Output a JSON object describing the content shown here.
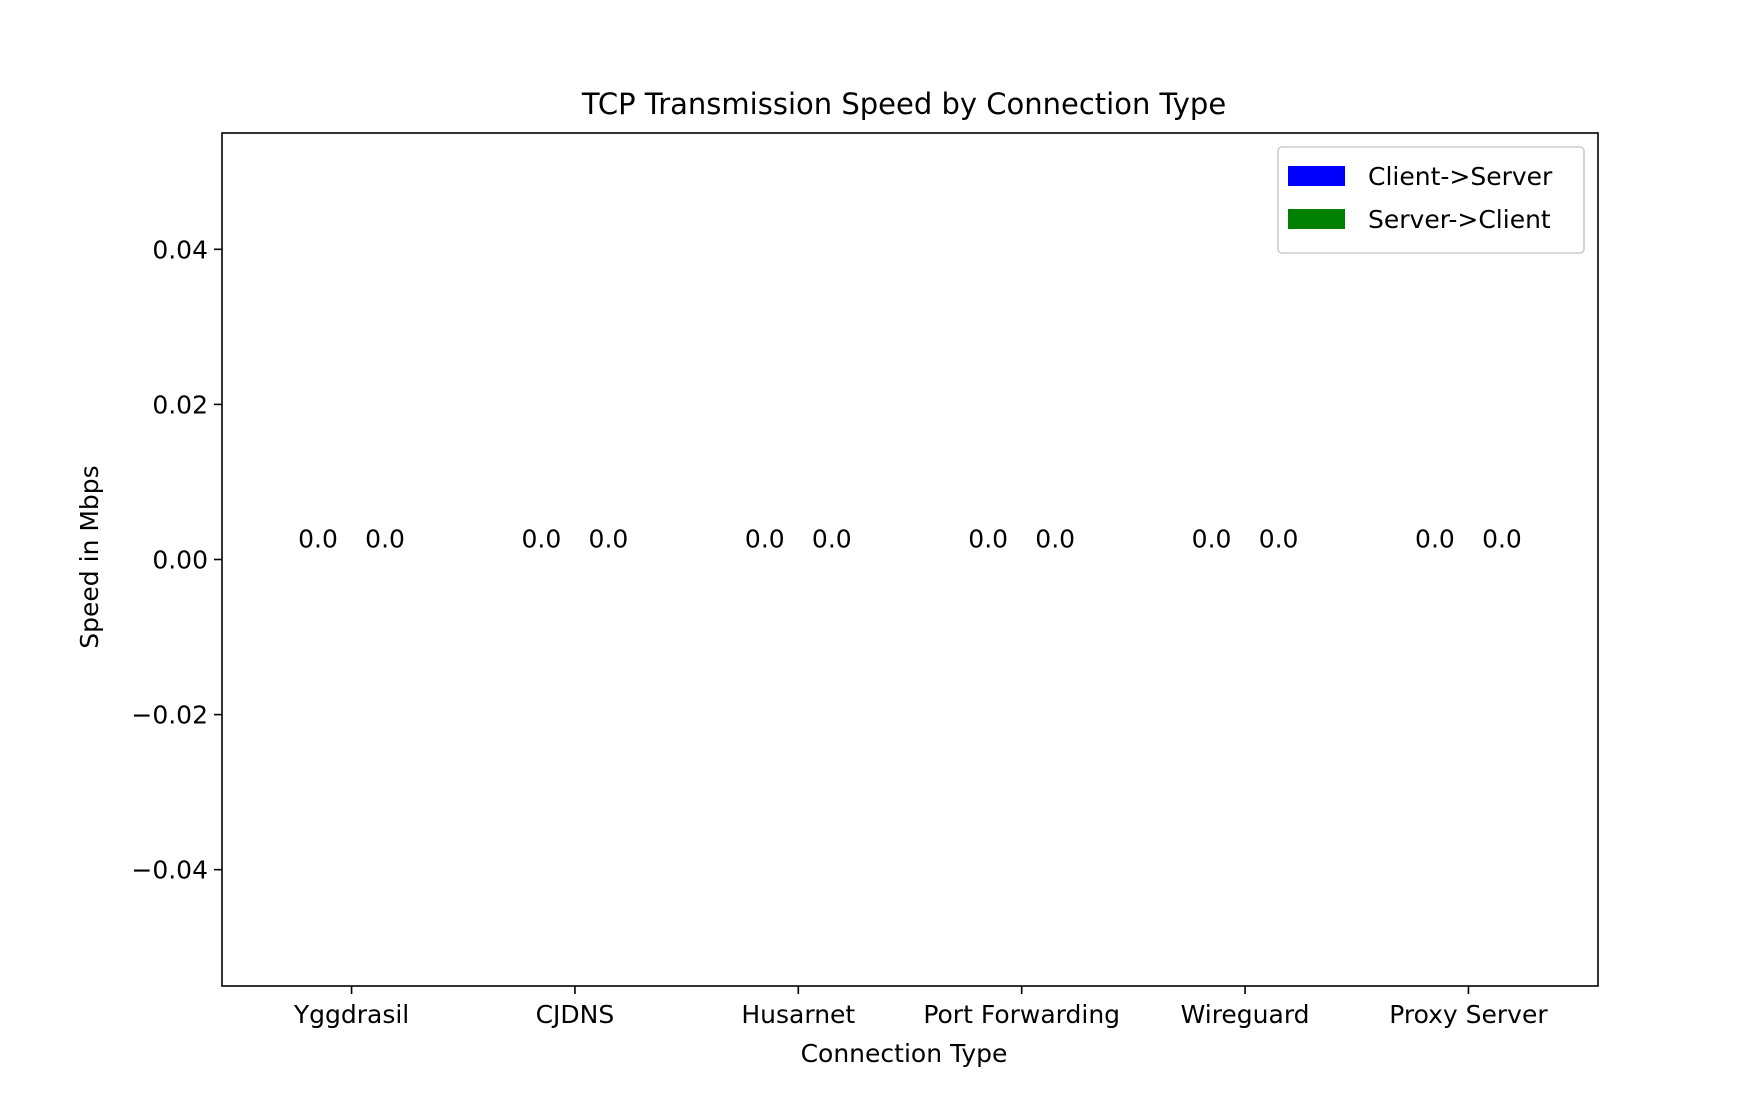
{
  "chart_data": {
    "type": "bar",
    "title": "TCP Transmission Speed by Connection Type",
    "xlabel": "Connection Type",
    "ylabel": "Speed in Mbps",
    "categories": [
      "Yggdrasil",
      "CJDNS",
      "Husarnet",
      "Port Forwarding",
      "Wireguard",
      "Proxy Server"
    ],
    "series": [
      {
        "name": "Client->Server",
        "color": "#0000ff",
        "values": [
          0.0,
          0.0,
          0.0,
          0.0,
          0.0,
          0.0
        ],
        "labels": [
          "0.0",
          "0.0",
          "0.0",
          "0.0",
          "0.0",
          "0.0"
        ]
      },
      {
        "name": "Server->Client",
        "color": "#008000",
        "values": [
          0.0,
          0.0,
          0.0,
          0.0,
          0.0,
          0.0
        ],
        "labels": [
          "0.0",
          "0.0",
          "0.0",
          "0.0",
          "0.0",
          "0.0"
        ]
      }
    ],
    "ylim": [
      -0.055,
      0.055
    ],
    "yticks": [
      -0.04,
      -0.02,
      0.0,
      0.02,
      0.04
    ],
    "ytick_labels": [
      "−0.04",
      "−0.02",
      "0.00",
      "0.02",
      "0.04"
    ],
    "grid": false,
    "legend_position": "top-right"
  }
}
